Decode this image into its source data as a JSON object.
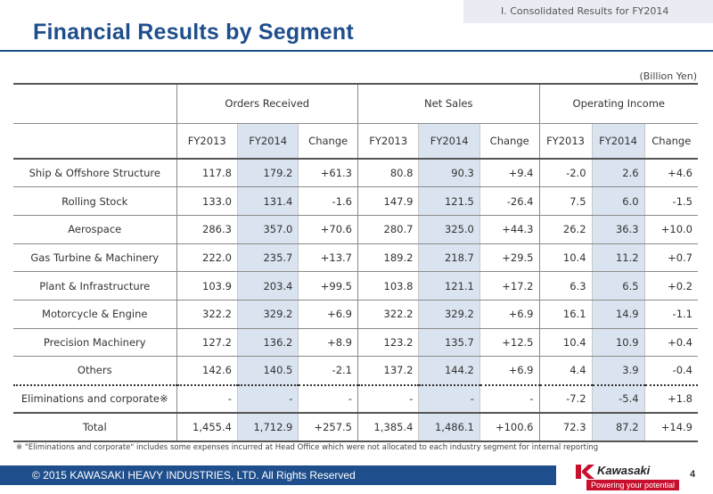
{
  "header": {
    "section": "I. Consolidated Results for FY2014",
    "title": "Financial Results by Segment",
    "unit": "(Billion Yen)"
  },
  "table": {
    "groups": [
      "Orders Received",
      "Net Sales",
      "Operating Income"
    ],
    "subcolumns": [
      "FY2013",
      "FY2014",
      "Change"
    ],
    "rows": [
      {
        "segment": "Ship & Offshore Structure",
        "values": [
          "117.8",
          "179.2",
          "+61.3",
          "80.8",
          "90.3",
          "+9.4",
          "-2.0",
          "2.6",
          "+4.6"
        ]
      },
      {
        "segment": "Rolling Stock",
        "values": [
          "133.0",
          "131.4",
          "-1.6",
          "147.9",
          "121.5",
          "-26.4",
          "7.5",
          "6.0",
          "-1.5"
        ]
      },
      {
        "segment": "Aerospace",
        "values": [
          "286.3",
          "357.0",
          "+70.6",
          "280.7",
          "325.0",
          "+44.3",
          "26.2",
          "36.3",
          "+10.0"
        ]
      },
      {
        "segment": "Gas Turbine & Machinery",
        "values": [
          "222.0",
          "235.7",
          "+13.7",
          "189.2",
          "218.7",
          "+29.5",
          "10.4",
          "11.2",
          "+0.7"
        ]
      },
      {
        "segment": "Plant & Infrastructure",
        "values": [
          "103.9",
          "203.4",
          "+99.5",
          "103.8",
          "121.1",
          "+17.2",
          "6.3",
          "6.5",
          "+0.2"
        ]
      },
      {
        "segment": "Motorcycle & Engine",
        "values": [
          "322.2",
          "329.2",
          "+6.9",
          "322.2",
          "329.2",
          "+6.9",
          "16.1",
          "14.9",
          "-1.1"
        ]
      },
      {
        "segment": "Precision Machinery",
        "values": [
          "127.2",
          "136.2",
          "+8.9",
          "123.2",
          "135.7",
          "+12.5",
          "10.4",
          "10.9",
          "+0.4"
        ]
      },
      {
        "segment": "Others",
        "values": [
          "142.6",
          "140.5",
          "-2.1",
          "137.2",
          "144.2",
          "+6.9",
          "4.4",
          "3.9",
          "-0.4"
        ]
      }
    ],
    "eliminations": {
      "segment": "Eliminations and corporate※",
      "values": [
        "-",
        "-",
        "-",
        "-",
        "-",
        "-",
        "-7.2",
        "-5.4",
        "+1.8"
      ]
    },
    "total": {
      "segment": "Total",
      "values": [
        "1,455.4",
        "1,712.9",
        "+257.5",
        "1,385.4",
        "1,486.1",
        "+100.6",
        "72.3",
        "87.2",
        "+14.9"
      ]
    }
  },
  "footnote": "※ \"Eliminations and corporate\" includes some expenses incurred at Head Office which were not allocated to each industry segment for internal reporting",
  "footer": {
    "copyright": "© 2015 KAWASAKI HEAVY INDUSTRIES, LTD. All Rights Reserved",
    "logo_word": "Kawasaki",
    "logo_tagline": "Powering your potential",
    "page_number": "4"
  },
  "colors": {
    "accent": "#1f4e8c",
    "highlight": "#dae4f0",
    "brand_red": "#c8102e"
  }
}
